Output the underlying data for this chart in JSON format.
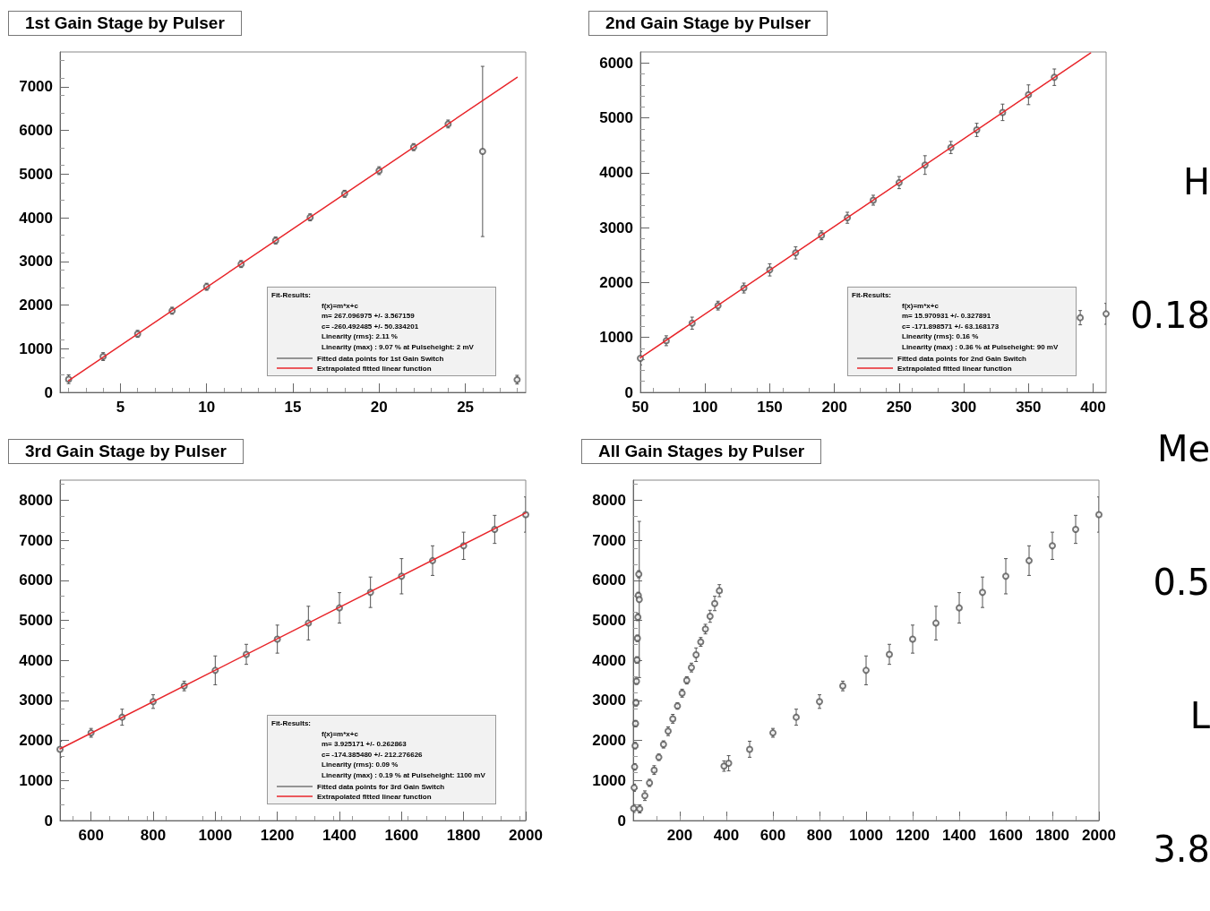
{
  "chart_data": [
    {
      "type": "scatter",
      "title": "1st Gain Stage by Pulser",
      "xlim": [
        1.5,
        28.5
      ],
      "xticks": [
        5,
        10,
        15,
        20,
        25
      ],
      "ylim": [
        0,
        7800
      ],
      "yticks": [
        0,
        1000,
        2000,
        3000,
        4000,
        5000,
        6000,
        7000
      ],
      "marker": "circle",
      "legend": "bottom right",
      "annotations": [
        "Fit-Results:",
        "f(x)=m*x+c",
        "m= 267.096975 +/- 3.567159",
        "c= -260.492485 +/- 50.334201",
        "Linearity (rms): 2.11 %",
        "Linearity (max) : 9.07 % at Pulseheight: 2 mV"
      ],
      "series": [
        {
          "name": "Fitted data points for 1st Gain Switch",
          "color": "#555555",
          "x": [
            2,
            4,
            6,
            8,
            10,
            12,
            14,
            16,
            18,
            20,
            22,
            24,
            26,
            28
          ],
          "values": [
            300,
            820,
            1340,
            1870,
            2420,
            2940,
            3480,
            4010,
            4550,
            5080,
            5620,
            6150,
            5520,
            290
          ],
          "errors": [
            100,
            90,
            80,
            80,
            80,
            80,
            80,
            80,
            80,
            90,
            80,
            90,
            1950,
            100
          ]
        },
        {
          "type": "line",
          "name": "Extrapolated fitted linear function",
          "color": "#e8262b",
          "marker": "none",
          "x": [
            2,
            28
          ],
          "values": [
            270,
            7220
          ]
        }
      ]
    },
    {
      "type": "scatter",
      "title": "2nd Gain Stage by Pulser",
      "xlim": [
        50,
        410
      ],
      "xticks": [
        50,
        100,
        150,
        200,
        250,
        300,
        350,
        400
      ],
      "ylim": [
        0,
        6200
      ],
      "yticks": [
        0,
        1000,
        2000,
        3000,
        4000,
        5000,
        6000
      ],
      "marker": "circle",
      "legend": "bottom right",
      "annotations": [
        "Fit-Results:",
        "f(x)=m*x+c",
        "m= 15.970931 +/- 0.327891",
        "c= -171.898571 +/- 63.168173",
        "Linearity (rms): 0.16 %",
        "Linearity (max) : 0.36 % at Pulseheight: 90 mV"
      ],
      "series": [
        {
          "name": "Fitted data points for 2nd Gain Switch",
          "color": "#555555",
          "x": [
            50,
            70,
            90,
            110,
            130,
            150,
            170,
            190,
            210,
            230,
            250,
            270,
            290,
            310,
            330,
            350,
            370,
            390,
            410
          ],
          "values": [
            620,
            940,
            1260,
            1580,
            1900,
            2230,
            2540,
            2860,
            3180,
            3500,
            3820,
            4140,
            4460,
            4780,
            5100,
            5420,
            5740,
            1360,
            1430
          ],
          "errors": [
            120,
            90,
            110,
            80,
            90,
            110,
            110,
            80,
            100,
            90,
            110,
            170,
            110,
            120,
            150,
            180,
            150,
            130,
            190
          ]
        },
        {
          "type": "line",
          "name": "Extrapolated fitted linear function",
          "color": "#e8262b",
          "marker": "none",
          "x": [
            50,
            398
          ],
          "values": [
            630,
            6180
          ]
        }
      ]
    },
    {
      "type": "scatter",
      "title": "3rd Gain Stage by Pulser",
      "xlim": [
        500,
        2000
      ],
      "xticks": [
        600,
        800,
        1000,
        1200,
        1400,
        1600,
        1800,
        2000
      ],
      "ylim": [
        0,
        8500
      ],
      "yticks": [
        0,
        1000,
        2000,
        3000,
        4000,
        5000,
        6000,
        7000,
        8000
      ],
      "marker": "circle",
      "legend": "bottom right",
      "annotations": [
        "Fit-Results:",
        "f(x)=m*x+c",
        "m= 3.925171 +/- 0.262863",
        "c= -174.385480 +/- 212.276626",
        "Linearity (rms): 0.09 %",
        "Linearity (max) : 0.19 % at Pulseheight: 1100 mV"
      ],
      "series": [
        {
          "name": "Fitted data points for 3rd Gain Switch",
          "color": "#555555",
          "x": [
            500,
            600,
            700,
            800,
            900,
            1000,
            1100,
            1200,
            1300,
            1400,
            1500,
            1600,
            1700,
            1800,
            1900,
            2000
          ],
          "values": [
            1780,
            2190,
            2580,
            2970,
            3360,
            3750,
            4150,
            4530,
            4930,
            5310,
            5700,
            6100,
            6490,
            6860,
            7270,
            7640
          ],
          "errors": [
            200,
            110,
            200,
            170,
            120,
            360,
            250,
            350,
            420,
            380,
            380,
            440,
            370,
            340,
            350,
            440
          ]
        },
        {
          "type": "line",
          "name": "Extrapolated fitted linear function",
          "color": "#e8262b",
          "marker": "none",
          "x": [
            500,
            2000
          ],
          "values": [
            1790,
            7680
          ]
        }
      ]
    },
    {
      "type": "scatter",
      "title": "All Gain Stages by Pulser",
      "xlim": [
        0,
        2000
      ],
      "xticks": [
        200,
        400,
        600,
        800,
        1000,
        1200,
        1400,
        1600,
        1800,
        2000
      ],
      "ylim": [
        0,
        8500
      ],
      "yticks": [
        0,
        1000,
        2000,
        3000,
        4000,
        5000,
        6000,
        7000,
        8000
      ],
      "marker": "circle",
      "series": [
        {
          "color": "#555555",
          "x": [
            2,
            4,
            6,
            8,
            10,
            12,
            14,
            16,
            18,
            20,
            22,
            24,
            26,
            28
          ],
          "values": [
            300,
            820,
            1340,
            1870,
            2420,
            2940,
            3480,
            4010,
            4550,
            5080,
            5620,
            6150,
            5520,
            290
          ],
          "errors": [
            100,
            90,
            80,
            80,
            80,
            80,
            80,
            80,
            80,
            90,
            80,
            90,
            1950,
            100
          ]
        },
        {
          "color": "#555555",
          "x": [
            50,
            70,
            90,
            110,
            130,
            150,
            170,
            190,
            210,
            230,
            250,
            270,
            290,
            310,
            330,
            350,
            370,
            390,
            410
          ],
          "values": [
            620,
            940,
            1260,
            1580,
            1900,
            2230,
            2540,
            2860,
            3180,
            3500,
            3820,
            4140,
            4460,
            4780,
            5100,
            5420,
            5740,
            1360,
            1430
          ],
          "errors": [
            120,
            90,
            110,
            80,
            90,
            110,
            110,
            80,
            100,
            90,
            110,
            170,
            110,
            120,
            150,
            180,
            150,
            130,
            190
          ]
        },
        {
          "color": "#555555",
          "x": [
            500,
            600,
            700,
            800,
            900,
            1000,
            1100,
            1200,
            1300,
            1400,
            1500,
            1600,
            1700,
            1800,
            1900,
            2000
          ],
          "values": [
            1780,
            2190,
            2580,
            2970,
            3360,
            3750,
            4150,
            4530,
            4930,
            5310,
            5700,
            6100,
            6490,
            6860,
            7270,
            7640
          ],
          "errors": [
            200,
            110,
            200,
            170,
            120,
            360,
            250,
            350,
            420,
            380,
            380,
            440,
            370,
            340,
            350,
            440
          ]
        }
      ]
    },
    {
      "type": "other",
      "annotations": [
        "H",
        "0.18",
        "Me",
        "0.5",
        "L",
        "3.8"
      ]
    }
  ]
}
